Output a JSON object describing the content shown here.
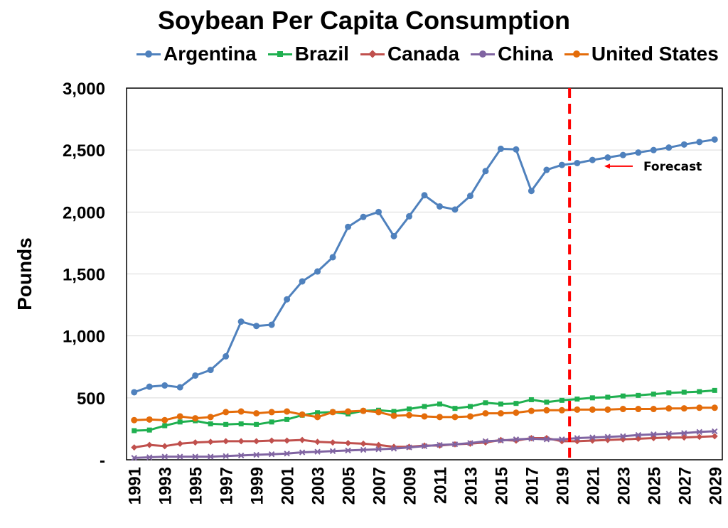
{
  "chart_data": {
    "type": "line",
    "title": "Soybean Per Capita Consumption",
    "ylabel": "Pounds",
    "xlabel": "",
    "ylim": [
      0,
      3000
    ],
    "y_ticks": [
      "-",
      "500",
      "1,000",
      "1,500",
      "2,000",
      "2,500",
      "3,000"
    ],
    "x": [
      1991,
      1992,
      1993,
      1994,
      1995,
      1996,
      1997,
      1998,
      1999,
      2000,
      2001,
      2002,
      2003,
      2004,
      2005,
      2006,
      2007,
      2008,
      2009,
      2010,
      2011,
      2012,
      2013,
      2014,
      2015,
      2016,
      2017,
      2018,
      2019,
      2020,
      2021,
      2022,
      2023,
      2024,
      2025,
      2026,
      2027,
      2028,
      2029
    ],
    "x_tick_labels": [
      "1991",
      "1993",
      "1995",
      "1997",
      "1999",
      "2001",
      "2003",
      "2005",
      "2007",
      "2009",
      "2011",
      "2013",
      "2015",
      "2017",
      "2019",
      "2021",
      "2023",
      "2025",
      "2027",
      "2029"
    ],
    "grid": "horizontal",
    "legend_position": "top",
    "forecast_start": 2019.5,
    "annotation": "Forecast",
    "series": [
      {
        "name": "Argentina",
        "color": "#4f81bd",
        "marker": "circle",
        "values": [
          545,
          590,
          600,
          585,
          680,
          725,
          835,
          1115,
          1080,
          1090,
          1295,
          1440,
          1520,
          1635,
          1880,
          1960,
          2000,
          1805,
          1965,
          2135,
          2045,
          2020,
          2130,
          2330,
          2510,
          2505,
          2170,
          2340,
          2380,
          2395,
          2420,
          2440,
          2460,
          2480,
          2500,
          2520,
          2545,
          2565,
          2585
        ]
      },
      {
        "name": "Brazil",
        "color": "#1fb050",
        "marker": "square",
        "values": [
          235,
          240,
          275,
          305,
          315,
          290,
          285,
          290,
          285,
          305,
          325,
          360,
          380,
          385,
          370,
          395,
          400,
          390,
          410,
          430,
          450,
          415,
          430,
          460,
          450,
          455,
          485,
          465,
          480,
          490,
          500,
          505,
          515,
          520,
          530,
          540,
          545,
          550,
          560
        ]
      },
      {
        "name": "Canada",
        "color": "#c0504d",
        "marker": "diamond",
        "values": [
          100,
          120,
          110,
          130,
          140,
          145,
          150,
          150,
          150,
          155,
          155,
          160,
          145,
          140,
          135,
          130,
          120,
          105,
          105,
          115,
          115,
          125,
          130,
          140,
          160,
          155,
          175,
          175,
          150,
          150,
          155,
          160,
          165,
          170,
          175,
          180,
          180,
          185,
          190
        ]
      },
      {
        "name": "China",
        "color": "#8064a2",
        "marker": "x",
        "values": [
          15,
          20,
          25,
          25,
          25,
          25,
          30,
          35,
          40,
          45,
          50,
          60,
          65,
          70,
          75,
          80,
          85,
          90,
          100,
          110,
          120,
          125,
          135,
          150,
          155,
          165,
          170,
          165,
          165,
          175,
          180,
          185,
          190,
          200,
          205,
          210,
          215,
          225,
          230
        ]
      },
      {
        "name": "United States",
        "color": "#e46c0a",
        "marker": "circle",
        "values": [
          320,
          325,
          320,
          350,
          335,
          345,
          385,
          390,
          375,
          385,
          390,
          365,
          345,
          385,
          390,
          395,
          385,
          355,
          360,
          350,
          345,
          345,
          350,
          375,
          375,
          380,
          395,
          400,
          400,
          405,
          405,
          405,
          410,
          410,
          410,
          415,
          415,
          420,
          420
        ]
      }
    ]
  }
}
